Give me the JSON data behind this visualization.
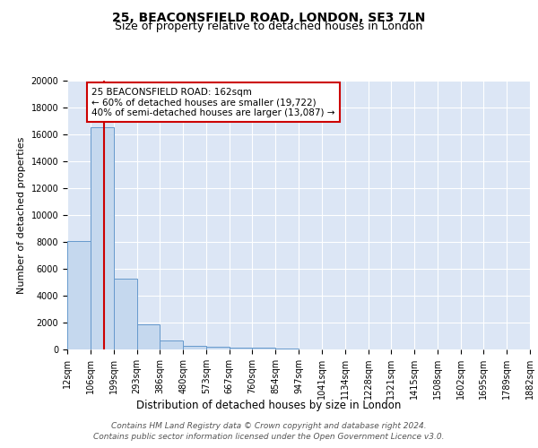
{
  "title1": "25, BEACONSFIELD ROAD, LONDON, SE3 7LN",
  "title2": "Size of property relative to detached houses in London",
  "xlabel": "Distribution of detached houses by size in London",
  "ylabel": "Number of detached properties",
  "bin_edges": [
    12,
    106,
    199,
    293,
    386,
    480,
    573,
    667,
    760,
    854,
    947,
    1041,
    1134,
    1228,
    1321,
    1415,
    1508,
    1602,
    1695,
    1789,
    1882
  ],
  "bar_heights": [
    8100,
    16500,
    5300,
    1850,
    700,
    300,
    200,
    150,
    150,
    100,
    0,
    0,
    0,
    0,
    0,
    0,
    0,
    0,
    0,
    0
  ],
  "bar_color": "#c5d8ee",
  "bar_edge_color": "#6699cc",
  "bg_color": "#dce6f5",
  "grid_color": "#ffffff",
  "property_line_x": 162,
  "property_line_color": "#cc0000",
  "annotation_text": "25 BEACONSFIELD ROAD: 162sqm\n← 60% of detached houses are smaller (19,722)\n40% of semi-detached houses are larger (13,087) →",
  "annotation_border_color": "#cc0000",
  "ylim": [
    0,
    20000
  ],
  "yticks": [
    0,
    2000,
    4000,
    6000,
    8000,
    10000,
    12000,
    14000,
    16000,
    18000,
    20000
  ],
  "footnote": "Contains HM Land Registry data © Crown copyright and database right 2024.\nContains public sector information licensed under the Open Government Licence v3.0.",
  "title1_fontsize": 10,
  "title2_fontsize": 9,
  "xlabel_fontsize": 8.5,
  "ylabel_fontsize": 8,
  "tick_fontsize": 7,
  "annotation_fontsize": 7.5,
  "footnote_fontsize": 6.5
}
